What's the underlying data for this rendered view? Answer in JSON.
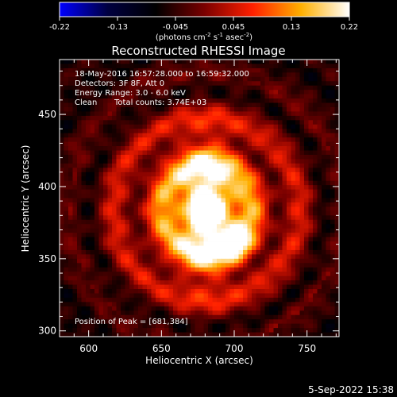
{
  "chart_data": {
    "type": "heatmap",
    "title": "Reconstructed RHESSI Image",
    "xlabel": "Heliocentric X (arcsec)",
    "ylabel": "Heliocentric Y (arcsec)",
    "xlim": [
      580,
      772
    ],
    "ylim": [
      296,
      488
    ],
    "xticks": [
      600,
      650,
      700,
      750
    ],
    "yticks": [
      300,
      350,
      400,
      450
    ],
    "colorbar": {
      "ticks": [
        "-0.22",
        "-0.13",
        "-0.045",
        "0.045",
        "0.13",
        "0.22"
      ],
      "unit_base": "(photons cm",
      "unit_sup1": "-2",
      "unit_mid": " s",
      "unit_sup2": "-1",
      "unit_mid2": " asec",
      "unit_sup3": "-2",
      "unit_end": ")",
      "range": [
        -0.22,
        0.22
      ],
      "colors": [
        "#0000ff",
        "#000040",
        "#000000",
        "#7a0000",
        "#ff2000",
        "#ffb000",
        "#ffffff"
      ]
    },
    "annotations": {
      "time": "18-May-2016 16:57:28.000 to 16:59:32.000",
      "detectors": "Detectors: 3F 8F, Att 0",
      "energy": "Energy Range: 3.0 - 6.0 keV",
      "method": "Clean",
      "counts": "Total counts: 3.74E+03",
      "peak": "Position of Peak = [681,384]"
    },
    "peak": [
      681,
      384
    ],
    "secondary_peak": [
      700,
      362
    ],
    "grid": false
  },
  "footer": {
    "date": "5-Sep-2022 15:38"
  }
}
